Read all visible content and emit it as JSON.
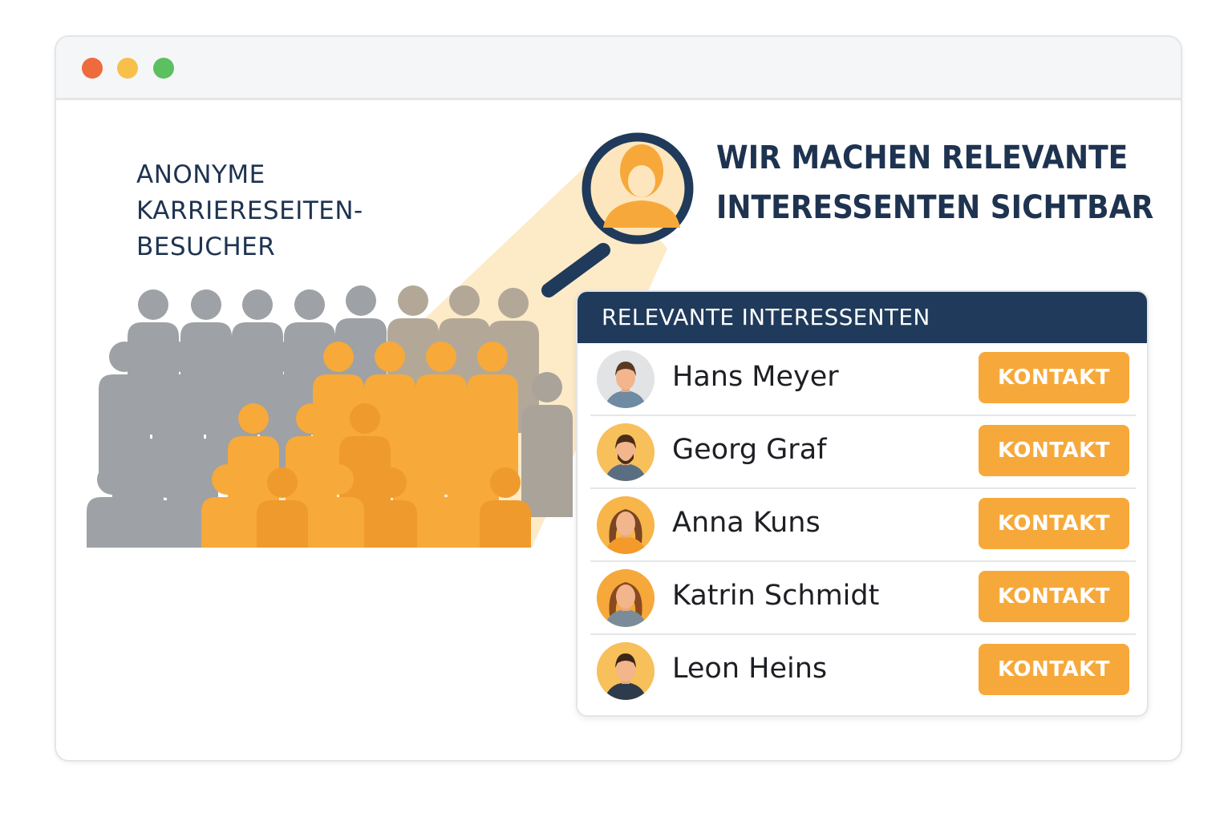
{
  "window": {
    "controls": {
      "close_color": "#ee6b3e",
      "minimize_color": "#f6c04a",
      "maximize_color": "#5cbf60"
    }
  },
  "visitors_label": "ANONYME\nKARRIERESEITEN-\nBESUCHER",
  "headline": {
    "line1": "WIR MACHEN RELEVANTE",
    "line2": "INTERESSENTEN SICHTBAR"
  },
  "panel": {
    "title": "RELEVANTE INTERESSENTEN",
    "contact_label": "KONTAKT",
    "people": [
      {
        "name": "Hans Meyer",
        "avatar": "man-short-hair-icon"
      },
      {
        "name": "Georg Graf",
        "avatar": "man-beard-icon"
      },
      {
        "name": "Anna Kuns",
        "avatar": "woman-long-hair-icon"
      },
      {
        "name": "Katrin Schmidt",
        "avatar": "woman-long-hair-icon"
      },
      {
        "name": "Leon Heins",
        "avatar": "man-short-hair-icon"
      }
    ]
  },
  "colors": {
    "navy": "#1f3a5a",
    "accent_orange": "#f6a93a",
    "crowd_gray": "#9ea1a5",
    "crowd_orange": "#f7a93a"
  }
}
